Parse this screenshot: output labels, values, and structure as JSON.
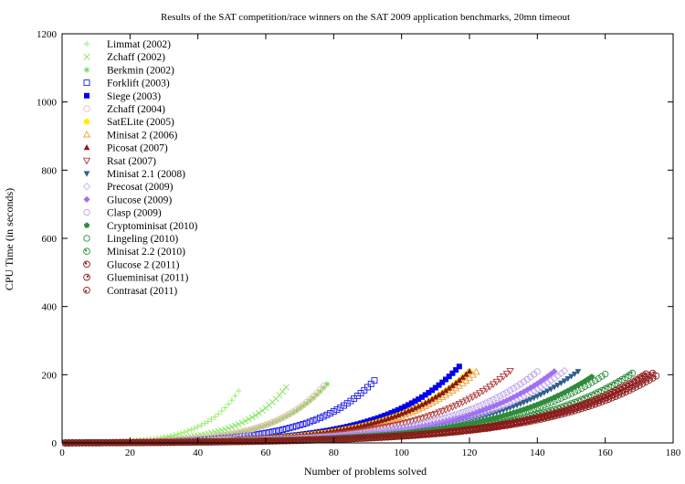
{
  "chart_data": {
    "type": "scatter",
    "title": "Results of the SAT competition/race winners on the SAT 2009 application benchmarks, 20mn timeout",
    "xlabel": "Number of problems solved",
    "ylabel": "CPU Time (in seconds)",
    "xlim": [
      0,
      180
    ],
    "ylim": [
      0,
      1200
    ],
    "xticks": [
      "0",
      "20",
      "40",
      "60",
      "80",
      "100",
      "120",
      "140",
      "160",
      "180"
    ],
    "yticks": [
      "0",
      "200",
      "400",
      "600",
      "800",
      "1000",
      "1200"
    ],
    "grid": false,
    "legend_position": "top-left",
    "series": [
      {
        "name": "Limmat (2002)",
        "color": "#90ee60",
        "marker": "plus",
        "count": 52,
        "b": 0.0968
      },
      {
        "name": "Zchaff (2002)",
        "color": "#7fe85a",
        "marker": "cross",
        "count": 66,
        "b": 0.0773
      },
      {
        "name": "Berkmin (2002)",
        "color": "#6fdc52",
        "marker": "star",
        "count": 78,
        "b": 0.0661
      },
      {
        "name": "Forklift (2003)",
        "color": "#1a1ae6",
        "marker": "square-open",
        "count": 92,
        "b": 0.0567
      },
      {
        "name": "Siege (2003)",
        "color": "#0000ee",
        "marker": "square",
        "count": 117,
        "b": 0.0463
      },
      {
        "name": "Zchaff (2004)",
        "color": "#f4b6b6",
        "marker": "circle-open",
        "count": 77,
        "b": 0.0665
      },
      {
        "name": "SatELite (2005)",
        "color": "#ffee00",
        "marker": "circle",
        "count": 120,
        "b": 0.0446
      },
      {
        "name": "Minisat 2 (2006)",
        "color": "#f0a030",
        "marker": "triangle-open",
        "count": 122,
        "b": 0.0438
      },
      {
        "name": "Picosat (2007)",
        "color": "#8b1a1a",
        "marker": "triangle",
        "count": 120,
        "b": 0.0446
      },
      {
        "name": "Rsat (2007)",
        "color": "#b03a3a",
        "marker": "triangle-down-open",
        "count": 132,
        "b": 0.0406
      },
      {
        "name": "Minisat 2.1 (2008)",
        "color": "#2f5f8a",
        "marker": "triangle-down",
        "count": 152,
        "b": 0.0352
      },
      {
        "name": "Precosat (2009)",
        "color": "#c9a8f4",
        "marker": "diamond-open",
        "count": 148,
        "b": 0.0362
      },
      {
        "name": "Glucose (2009)",
        "color": "#a070f0",
        "marker": "diamond",
        "count": 145,
        "b": 0.0369
      },
      {
        "name": "Clasp (2009)",
        "color": "#b8a0ea",
        "marker": "circle-open",
        "count": 140,
        "b": 0.0382
      },
      {
        "name": "Cryptominisat (2010)",
        "color": "#2e8b3a",
        "marker": "pentagon",
        "count": 156,
        "b": 0.0338
      },
      {
        "name": "Lingeling (2010)",
        "color": "#2e8b3a",
        "marker": "circle-open",
        "count": 160,
        "b": 0.0332
      },
      {
        "name": "Minisat 2.2 (2010)",
        "color": "#2e8b3a",
        "marker": "circle-dot",
        "count": 168,
        "b": 0.0317
      },
      {
        "name": "Glucose 2 (2011)",
        "color": "#8b1a1a",
        "marker": "circle-dot",
        "count": 172,
        "b": 0.0309
      },
      {
        "name": "Glueminisat (2011)",
        "color": "#8b1a1a",
        "marker": "circle-dot2",
        "count": 174,
        "b": 0.0306
      },
      {
        "name": "Contrasat (2011)",
        "color": "#8b1a1a",
        "marker": "circle-dot3",
        "count": 175,
        "b": 0.0302
      }
    ]
  }
}
